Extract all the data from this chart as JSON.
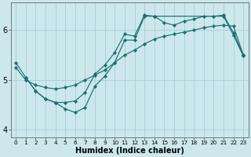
{
  "xlabel": "Humidex (Indice chaleur)",
  "xlim": [
    -0.5,
    23.5
  ],
  "ylim": [
    3.85,
    6.55
  ],
  "yticks": [
    4,
    5,
    6
  ],
  "xticks": [
    0,
    1,
    2,
    3,
    4,
    5,
    6,
    7,
    8,
    9,
    10,
    11,
    12,
    13,
    14,
    15,
    16,
    17,
    18,
    19,
    20,
    21,
    22,
    23
  ],
  "background_color": "#cce8ed",
  "grid_color": "#aaccd4",
  "line_color": "#1a7070",
  "lines": [
    {
      "x": [
        0,
        1,
        2,
        3,
        4,
        5,
        6,
        7,
        8,
        9,
        10,
        11,
        12,
        13,
        14,
        15,
        16,
        17,
        18,
        19,
        20,
        21,
        22,
        23
      ],
      "y": [
        5.25,
        5.0,
        4.9,
        4.85,
        4.82,
        4.85,
        4.9,
        5.0,
        5.1,
        5.2,
        5.35,
        5.5,
        5.6,
        5.72,
        5.82,
        5.88,
        5.92,
        5.96,
        6.0,
        6.05,
        6.08,
        6.1,
        6.08,
        5.5
      ]
    },
    {
      "x": [
        0,
        1,
        2,
        3,
        4,
        5,
        6,
        7,
        8,
        9,
        10,
        11,
        12,
        13,
        14,
        15,
        16,
        17,
        18,
        19,
        20,
        21,
        22,
        23
      ],
      "y": [
        5.35,
        5.05,
        4.78,
        4.62,
        4.55,
        4.55,
        4.58,
        4.75,
        5.12,
        5.3,
        5.55,
        5.92,
        5.88,
        6.3,
        6.28,
        6.15,
        6.1,
        6.18,
        6.22,
        6.28,
        6.28,
        6.3,
        5.95,
        5.5
      ]
    },
    {
      "x": [
        1,
        2,
        3,
        4,
        5,
        6,
        7,
        8,
        9,
        10,
        11,
        12,
        13,
        14,
        21,
        22,
        23
      ],
      "y": [
        5.05,
        4.78,
        4.62,
        4.55,
        4.42,
        4.35,
        4.45,
        4.88,
        5.08,
        5.35,
        5.8,
        5.8,
        6.28,
        6.28,
        6.28,
        5.9,
        5.48
      ]
    }
  ],
  "marker": "D",
  "markersize": 2.2
}
